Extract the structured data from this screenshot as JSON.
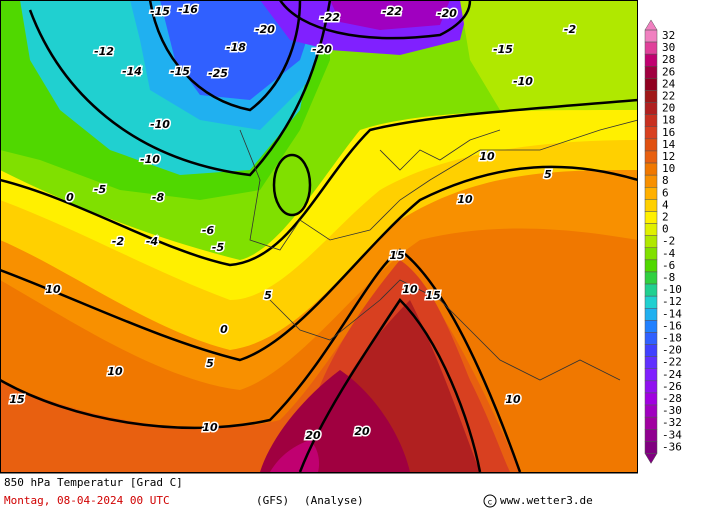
{
  "map": {
    "title": "850 hPa Temperatur [Grad C]",
    "date": "Montag, 08-04-2024  00 UTC",
    "model": "(GFS)",
    "run": "(Analyse)",
    "credit": "www.wetter3.de",
    "colorbar_ticks": [
      32,
      30,
      28,
      26,
      24,
      22,
      20,
      18,
      16,
      14,
      12,
      10,
      8,
      6,
      4,
      2,
      0,
      -2,
      -4,
      -6,
      -8,
      -10,
      -12,
      -14,
      -16,
      -18,
      -20,
      -22,
      -24,
      -26,
      -28,
      -30,
      -32,
      -34,
      -36
    ],
    "contour_labels": [
      -15,
      -16,
      -20,
      -22,
      -22,
      -20,
      -15,
      -10,
      -2,
      -20,
      -18,
      -25,
      -15,
      -14,
      -12,
      -10,
      -10,
      -5,
      -5,
      0,
      0,
      5,
      5,
      10,
      10,
      10,
      10,
      10,
      10,
      15,
      15,
      15,
      20,
      20,
      10,
      5,
      -2,
      -4,
      -6,
      -8
    ]
  }
}
